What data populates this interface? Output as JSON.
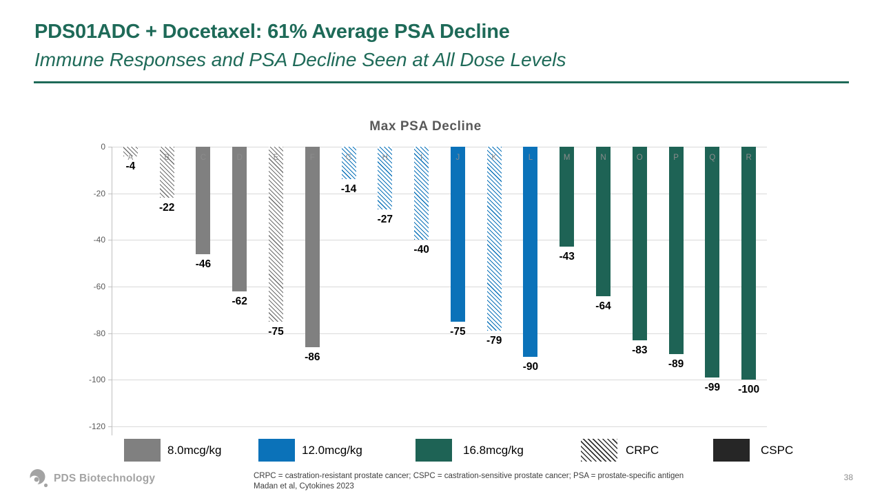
{
  "slide": {
    "title": "PDS01ADC + Docetaxel: 61% Average PSA Decline",
    "subtitle": "Immune Responses and PSA Decline Seen at All Dose Levels",
    "page_number": "38"
  },
  "footer": {
    "logo_text": "PDS Biotechnology",
    "abbreviations": "CRPC = castration-resistant prostate cancer; CSPC = castration-sensitive prostate cancer; PSA = prostate-specific antigen",
    "citation": "Madan et al, Cytokines 2023"
  },
  "colors": {
    "accent_teal": "#1e6a58",
    "dose_8": "#808080",
    "dose_12": "#0b72b9",
    "dose_16": "#1e6355",
    "cspc_dark": "#262626",
    "gridline": "#d9d9d9",
    "axis": "#bfbfbf"
  },
  "chart_data": {
    "type": "bar",
    "title": "Max PSA Decline",
    "xlabel": "",
    "ylabel": "",
    "ylim": [
      -120,
      0
    ],
    "yticks": [
      0,
      -20,
      -40,
      -60,
      -80,
      -100,
      -120
    ],
    "grid": true,
    "legend_position": "bottom",
    "categories": [
      "A",
      "B",
      "C",
      "D",
      "E",
      "F",
      "G",
      "H",
      "I",
      "J",
      "K",
      "L",
      "M",
      "N",
      "O",
      "P",
      "Q",
      "R"
    ],
    "values": [
      -4,
      -22,
      -46,
      -62,
      -75,
      -86,
      -14,
      -27,
      -40,
      -75,
      -79,
      -90,
      -43,
      -64,
      -83,
      -89,
      -99,
      -100
    ],
    "bars": [
      {
        "label": "A",
        "value": -4,
        "dose": "8.0mcg/kg",
        "status": "CRPC"
      },
      {
        "label": "B",
        "value": -22,
        "dose": "8.0mcg/kg",
        "status": "CRPC"
      },
      {
        "label": "C",
        "value": -46,
        "dose": "8.0mcg/kg",
        "status": "CSPC"
      },
      {
        "label": "D",
        "value": -62,
        "dose": "8.0mcg/kg",
        "status": "CSPC"
      },
      {
        "label": "E",
        "value": -75,
        "dose": "8.0mcg/kg",
        "status": "CRPC"
      },
      {
        "label": "F",
        "value": -86,
        "dose": "8.0mcg/kg",
        "status": "CSPC"
      },
      {
        "label": "G",
        "value": -14,
        "dose": "12.0mcg/kg",
        "status": "CRPC"
      },
      {
        "label": "H",
        "value": -27,
        "dose": "12.0mcg/kg",
        "status": "CRPC"
      },
      {
        "label": "I",
        "value": -40,
        "dose": "12.0mcg/kg",
        "status": "CRPC"
      },
      {
        "label": "J",
        "value": -75,
        "dose": "12.0mcg/kg",
        "status": "CSPC"
      },
      {
        "label": "K",
        "value": -79,
        "dose": "12.0mcg/kg",
        "status": "CRPC"
      },
      {
        "label": "L",
        "value": -90,
        "dose": "12.0mcg/kg",
        "status": "CSPC"
      },
      {
        "label": "M",
        "value": -43,
        "dose": "16.8mcg/kg",
        "status": "CSPC"
      },
      {
        "label": "N",
        "value": -64,
        "dose": "16.8mcg/kg",
        "status": "CSPC"
      },
      {
        "label": "O",
        "value": -83,
        "dose": "16.8mcg/kg",
        "status": "CSPC"
      },
      {
        "label": "P",
        "value": -89,
        "dose": "16.8mcg/kg",
        "status": "CSPC"
      },
      {
        "label": "Q",
        "value": -99,
        "dose": "16.8mcg/kg",
        "status": "CSPC"
      },
      {
        "label": "R",
        "value": -100,
        "dose": "16.8mcg/kg",
        "status": "CSPC"
      }
    ],
    "legend": [
      {
        "label": "8.0mcg/kg",
        "color": "#808080",
        "style": "solid"
      },
      {
        "label": "12.0mcg/kg",
        "color": "#0b72b9",
        "style": "solid"
      },
      {
        "label": "16.8mcg/kg",
        "color": "#1e6355",
        "style": "solid"
      },
      {
        "label": "CRPC",
        "color": "#2f2f2f",
        "style": "hatched"
      },
      {
        "label": "CSPC",
        "color": "#262626",
        "style": "solid"
      }
    ]
  }
}
